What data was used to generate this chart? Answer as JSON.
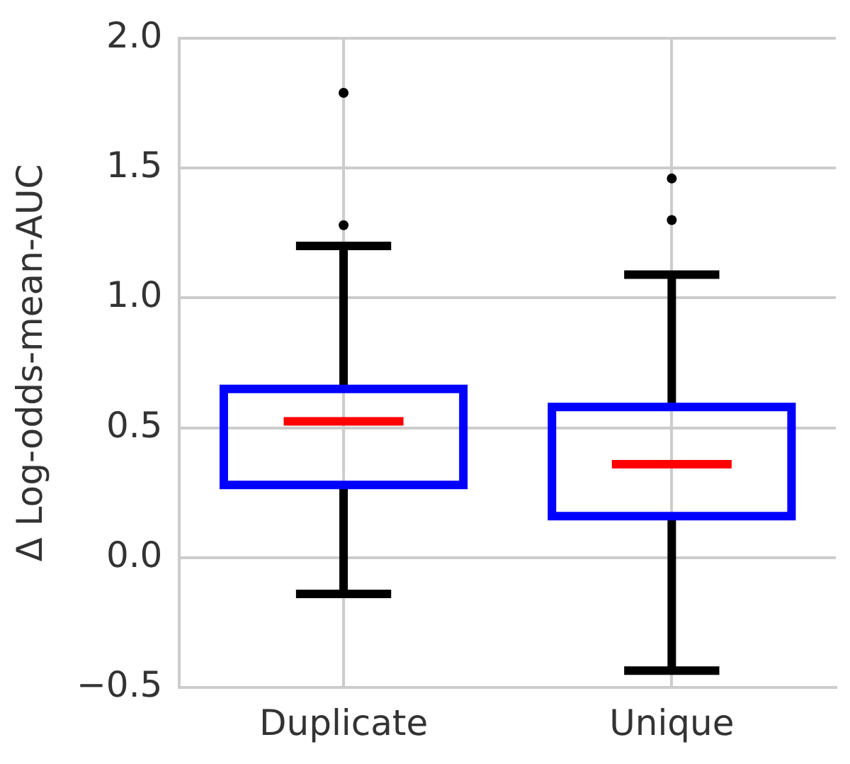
{
  "chart_data": {
    "type": "box",
    "ylabel": "Δ Log-odds-mean-AUC",
    "categories": [
      "Duplicate",
      "Unique"
    ],
    "color": "#0000ff",
    "boxes": [
      {
        "low": -0.14,
        "q1": 0.28,
        "median": 0.525,
        "q3": 0.65,
        "high": 1.2,
        "outliers": [
          1.28,
          1.79
        ]
      },
      {
        "low": -0.435,
        "q1": 0.16,
        "median": 0.36,
        "q3": 0.58,
        "high": 1.09,
        "outliers": [
          1.3,
          1.46
        ]
      }
    ],
    "ylim": [
      -0.5,
      2.0
    ],
    "yticks": [
      {
        "value": -0.5,
        "label": "−0.5"
      },
      {
        "value": 0,
        "label": "0.0"
      },
      {
        "value": 0.5,
        "label": "0.5"
      },
      {
        "value": 1,
        "label": "1.0"
      },
      {
        "value": 1.5,
        "label": "1.5"
      },
      {
        "value": 2,
        "label": "2.0"
      }
    ],
    "grid": true
  }
}
